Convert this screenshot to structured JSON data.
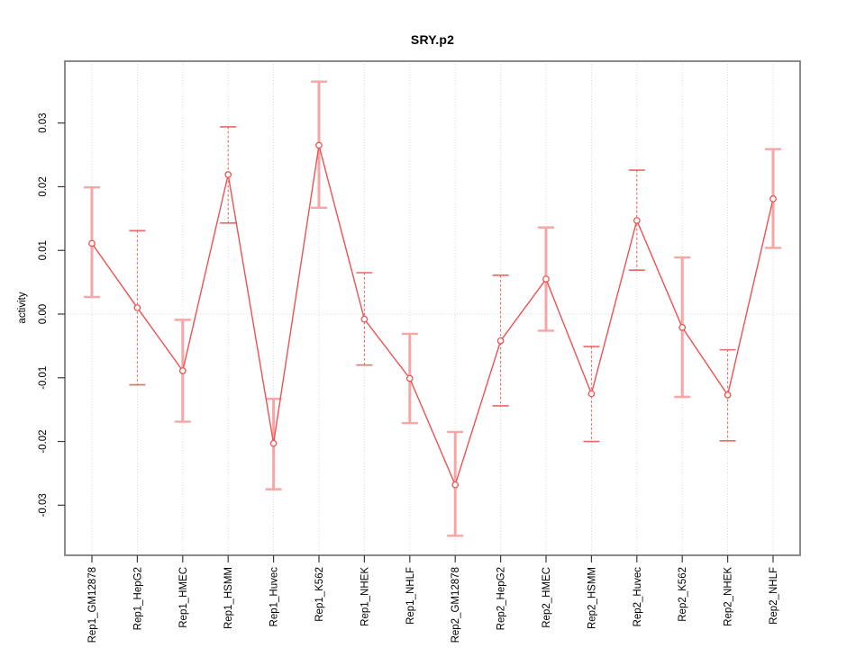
{
  "chart_data": {
    "type": "line",
    "title": "SRY.p2",
    "ylabel": "activity",
    "xlabel": "",
    "legend": "none",
    "categories": [
      "Rep1_GM12878",
      "Rep1_HepG2",
      "Rep1_HMEC",
      "Rep1_HSMM",
      "Rep1_Huvec",
      "Rep1_K562",
      "Rep1_NHEK",
      "Rep1_NHLF",
      "Rep2_GM12878",
      "Rep2_HepG2",
      "Rep2_HMEC",
      "Rep2_HSMM",
      "Rep2_Huvec",
      "Rep2_K562",
      "Rep2_NHEK",
      "Rep2_NHLF"
    ],
    "series": [
      {
        "name": "activity",
        "values": [
          0.0111,
          0.001,
          -0.0089,
          0.0219,
          -0.0203,
          0.0265,
          -0.0008,
          -0.0101,
          -0.0268,
          -0.0042,
          0.0055,
          -0.0125,
          0.0147,
          -0.0021,
          -0.0127,
          0.0181
        ],
        "error_upper": [
          0.0199,
          0.0131,
          -0.0009,
          0.0294,
          -0.0133,
          0.0365,
          0.0065,
          -0.0031,
          -0.0185,
          0.0061,
          0.0136,
          -0.0051,
          0.0226,
          0.0089,
          -0.0056,
          0.0259
        ],
        "error_lower": [
          0.0027,
          -0.0111,
          -0.0169,
          0.0143,
          -0.0275,
          0.0167,
          -0.008,
          -0.0171,
          -0.0348,
          -0.0144,
          -0.0026,
          -0.02,
          0.0069,
          -0.013,
          -0.0199,
          0.0104
        ],
        "error_bar_styles": [
          "solid",
          "dashed",
          "solid",
          "dashed",
          "solid",
          "solid",
          "dashed",
          "solid",
          "solid",
          "dashed",
          "solid",
          "dashed",
          "dashed",
          "solid",
          "dashed",
          "solid"
        ]
      }
    ],
    "yticks": [
      -0.03,
      -0.02,
      -0.01,
      0,
      0.01,
      0.02,
      0.03
    ],
    "ytick_labels": [
      "-0.03",
      "-0.02",
      "-0.01",
      "0.00",
      "0.01",
      "0.02",
      "0.03"
    ],
    "ylim": [
      -0.0379,
      0.0397
    ],
    "grid": {
      "vertical_at_categories": true,
      "horizontal_at_zero": true
    },
    "colors": {
      "line": "#ee5252",
      "marker_stroke": "#ee5252",
      "error_bar_solid": "#f7a5a5",
      "error_bar_dashed": "#ee6666",
      "gridline": "#d9d9d9",
      "zero_line": "#d4d4d4",
      "border": "#7d7d7d",
      "tick": "#3a3a3a",
      "text": "#000000"
    }
  }
}
